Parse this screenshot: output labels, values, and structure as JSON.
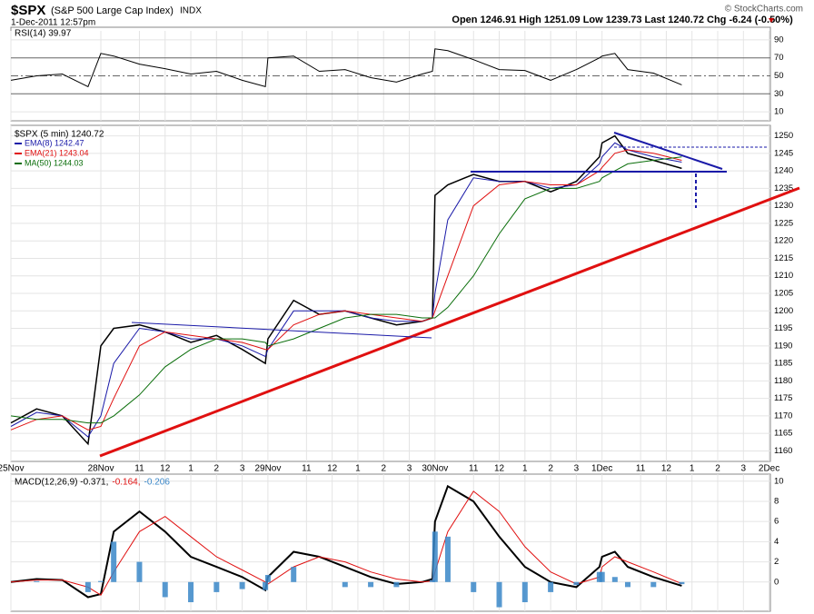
{
  "header": {
    "symbol": "$SPX",
    "name": "(S&P 500 Large Cap Index)",
    "exchange": "INDX",
    "date": "1-Dec-2011 12:57pm",
    "quote": "Open 1246.91  High 1251.09  Low 1239.73  Last 1240.72",
    "change": "Chg -6.24 (-0.50%)",
    "credit": "© StockCharts.com"
  },
  "chart_data": [
    {
      "type": "line",
      "legend": "RSI(14) 39.97",
      "ylim": [
        0,
        100
      ],
      "yticks": [
        10,
        30,
        50,
        70,
        90
      ],
      "series": [
        {
          "name": "RSI(14)",
          "color": "#000000",
          "values": [
            45,
            50,
            52,
            38,
            75,
            72,
            63,
            58,
            52,
            55,
            45,
            38,
            70,
            72,
            55,
            57,
            48,
            43,
            52,
            55,
            80,
            78,
            68,
            57,
            56,
            45,
            57,
            70,
            72,
            75,
            57,
            53,
            40
          ]
        }
      ]
    },
    {
      "type": "line",
      "legend": "$SPX (5 min) 1240.72",
      "x": [
        0,
        1,
        2,
        3,
        3.5,
        4,
        5,
        6,
        7,
        8,
        9,
        9.9,
        10,
        11,
        12,
        13,
        14,
        15,
        16,
        16.4,
        16.5,
        17,
        18,
        19,
        20,
        21,
        22,
        22.9,
        23,
        23.5,
        24,
        25,
        26.1
      ],
      "xlim": [
        0,
        29.55
      ],
      "xticks": [
        {
          "value": 0,
          "label": "25Nov"
        },
        {
          "value": 3.5,
          "label": "28Nov"
        },
        {
          "value": 5,
          "label": "11"
        },
        {
          "value": 6,
          "label": "12"
        },
        {
          "value": 7,
          "label": "1"
        },
        {
          "value": 8,
          "label": "2"
        },
        {
          "value": 9,
          "label": "3"
        },
        {
          "value": 10,
          "label": "29Nov"
        },
        {
          "value": 11.5,
          "label": "11"
        },
        {
          "value": 12.5,
          "label": "12"
        },
        {
          "value": 13.5,
          "label": "1"
        },
        {
          "value": 14.5,
          "label": "2"
        },
        {
          "value": 15.5,
          "label": "3"
        },
        {
          "value": 16.5,
          "label": "30Nov"
        },
        {
          "value": 18,
          "label": "11"
        },
        {
          "value": 19,
          "label": "12"
        },
        {
          "value": 20,
          "label": "1"
        },
        {
          "value": 21,
          "label": "2"
        },
        {
          "value": 22,
          "label": "3"
        },
        {
          "value": 23,
          "label": "1Dec"
        },
        {
          "value": 24.5,
          "label": "11"
        },
        {
          "value": 25.5,
          "label": "12"
        },
        {
          "value": 26.5,
          "label": "1"
        },
        {
          "value": 27.5,
          "label": "2"
        },
        {
          "value": 28.5,
          "label": "3"
        },
        {
          "value": 29.5,
          "label": "2Dec"
        }
      ],
      "ylim": [
        1157,
        1253
      ],
      "yticks": [
        1160,
        1165,
        1170,
        1175,
        1180,
        1185,
        1190,
        1195,
        1200,
        1205,
        1210,
        1215,
        1220,
        1225,
        1230,
        1235,
        1240,
        1245,
        1250
      ],
      "series": [
        {
          "name": "$SPX",
          "color": "#000000",
          "values": [
            1168,
            1172,
            1170,
            1162,
            1190,
            1195,
            1196,
            1194,
            1191,
            1193,
            1189,
            1185,
            1192,
            1203,
            1199,
            1200,
            1198,
            1196,
            1197,
            1198,
            1233,
            1236,
            1239,
            1237,
            1237,
            1234,
            1237,
            1244,
            1248,
            1250,
            1245,
            1243,
            1240.7
          ]
        },
        {
          "name": "EMA(8) 1242.47",
          "color": "#1a1aa8",
          "values": [
            1167,
            1171,
            1170,
            1164,
            1170,
            1185,
            1195,
            1194,
            1192,
            1192,
            1190,
            1187,
            1189,
            1200,
            1200,
            1200,
            1198,
            1197,
            1197,
            1198,
            1205,
            1226,
            1238,
            1237,
            1237,
            1235,
            1236,
            1242,
            1244,
            1248,
            1246,
            1244,
            1242.5
          ]
        },
        {
          "name": "EMA(21) 1243.04",
          "color": "#e01010",
          "values": [
            1166,
            1169,
            1170,
            1166,
            1167,
            1175,
            1190,
            1194,
            1193,
            1192,
            1191,
            1189,
            1189,
            1196,
            1199,
            1200,
            1199,
            1198,
            1197,
            1198,
            1200,
            1210,
            1230,
            1236,
            1237,
            1236,
            1236,
            1240,
            1241,
            1245,
            1246,
            1245,
            1243
          ]
        },
        {
          "name": "MA(50) 1244.03",
          "color": "#0a6e0a",
          "values": [
            1170,
            1169,
            1169,
            1168,
            1168,
            1170,
            1176,
            1184,
            1189,
            1192,
            1192,
            1191,
            1190,
            1192,
            1195,
            1198,
            1199,
            1199,
            1198,
            1198,
            1198,
            1201,
            1210,
            1222,
            1232,
            1235,
            1235,
            1237,
            1238,
            1240,
            1242,
            1243,
            1244
          ]
        }
      ]
    },
    {
      "type": "line",
      "ylim": [
        -2.9,
        10.7
      ],
      "yticks": [
        0,
        2,
        4,
        6,
        8,
        10
      ],
      "series": [
        {
          "name": "MACD(12,26,9) -0.371,",
          "color": "#000000",
          "values": [
            0,
            0.3,
            0.2,
            -1.5,
            -1.2,
            5,
            7,
            5,
            2.5,
            1.5,
            0.5,
            -0.8,
            0.5,
            3,
            2.5,
            1.5,
            0.5,
            -0.2,
            0,
            0.3,
            6,
            9.5,
            8,
            4.5,
            1.5,
            0,
            -0.5,
            1.5,
            2.5,
            3,
            1.5,
            0.5,
            -0.37
          ]
        },
        {
          "name": "-0.164,",
          "color": "#e01010",
          "values": [
            0,
            0.2,
            0.2,
            -0.5,
            -1.3,
            1,
            5,
            6.5,
            4.5,
            2.5,
            1.2,
            0,
            -0.2,
            1.5,
            2.5,
            2,
            1,
            0.3,
            0,
            0.1,
            1,
            5,
            9,
            7,
            3.5,
            1,
            -0.2,
            0.5,
            1.5,
            2.5,
            2,
            1,
            -0.16
          ]
        },
        {
          "name": "-0.206",
          "color": "#3a87c8",
          "kind": "histogram",
          "values": [
            0,
            0.1,
            0,
            -1,
            0.1,
            4,
            2,
            -1.5,
            -2,
            -1,
            -0.7,
            -0.8,
            0.7,
            1.5,
            0,
            -0.5,
            -0.5,
            -0.5,
            0,
            0.2,
            5,
            4.5,
            -1,
            -2.5,
            -2,
            -1,
            -0.3,
            1,
            1,
            0.5,
            -0.5,
            -0.5,
            -0.21
          ]
        }
      ]
    }
  ]
}
